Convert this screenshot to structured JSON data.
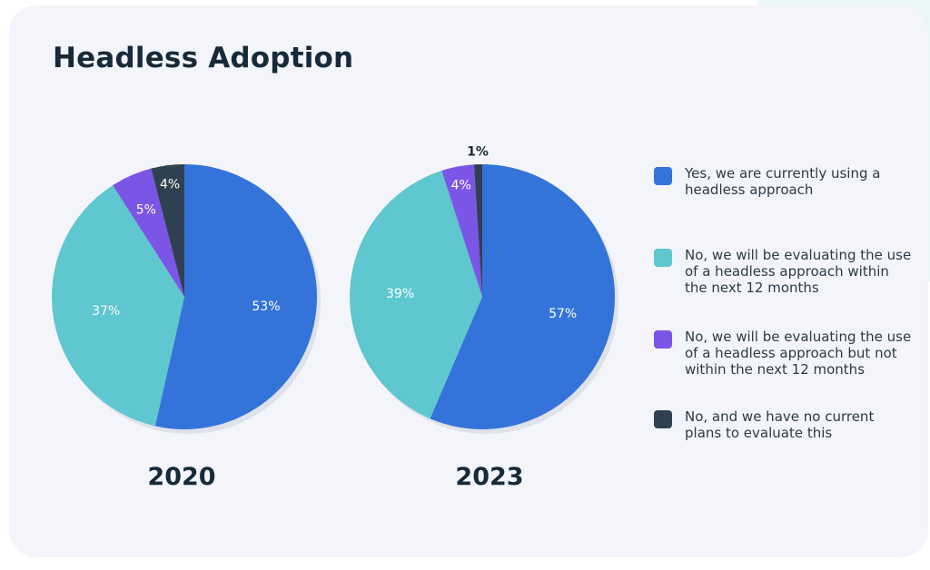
{
  "title": "Headless Adoption",
  "colors": {
    "yes": "#3473d9",
    "eval_12": "#5ec7cf",
    "eval_later": "#7a55e6",
    "no_plans": "#2f4150",
    "label_light": "#ffffff",
    "label_dark": "#172a3a"
  },
  "legend": [
    {
      "label": "Yes, we are currently using a headless approach",
      "color_key": "yes"
    },
    {
      "label": "No, we will be evaluating the use of a headless approach within the next 12 months",
      "color_key": "eval_12"
    },
    {
      "label": "No, we will be evaluating the use of a headless approach but not within the next 12 months",
      "color_key": "eval_later"
    },
    {
      "label": "No, and we have no current plans to evaluate this",
      "color_key": "no_plans"
    }
  ],
  "chart_data": [
    {
      "type": "pie",
      "title": "2020",
      "categories": [
        "Yes, we are currently using a headless approach",
        "No, we will be evaluating the use of a headless approach within the next 12 months",
        "No, we will be evaluating the use of a headless approach but not within the next 12 months",
        "No, and we have no current plans to evaluate this"
      ],
      "values": [
        53,
        37,
        5,
        4
      ],
      "labels": [
        "53%",
        "37%",
        "5%",
        "4%"
      ],
      "legend_position": "right"
    },
    {
      "type": "pie",
      "title": "2023",
      "categories": [
        "Yes, we are currently using a headless approach",
        "No, we will be evaluating the use of a headless approach within the next 12 months",
        "No, we will be evaluating the use of a headless approach but not within the next 12 months",
        "No, and we have no current plans to evaluate this"
      ],
      "values": [
        57,
        39,
        4,
        1
      ],
      "labels": [
        "57%",
        "39%",
        "4%",
        "1%"
      ],
      "legend_position": "right"
    }
  ]
}
